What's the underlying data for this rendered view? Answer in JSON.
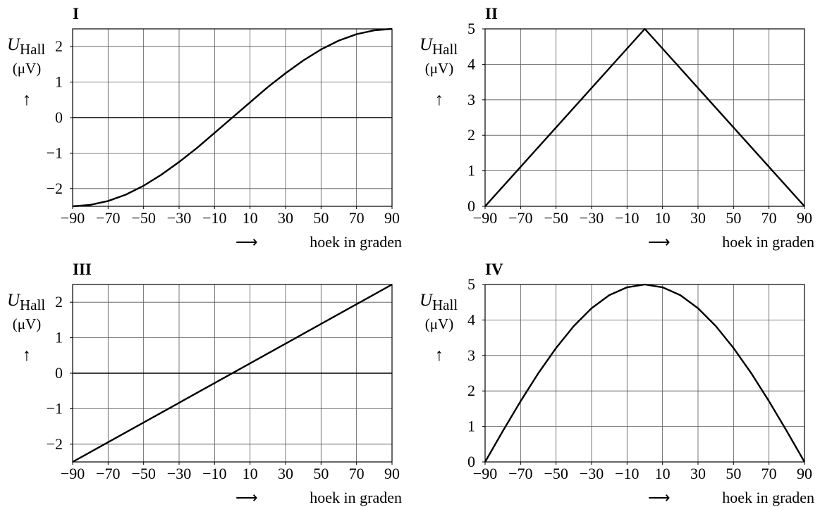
{
  "chart_data": [
    {
      "type": "line",
      "title": "I",
      "ylabel": "U",
      "ylabel_sub": "Hall",
      "yunit": "(μV)",
      "yarrow": "↑",
      "xlabel_arrow": "⟶",
      "xlabel": "hoek in graden",
      "xlim": [
        -90,
        90
      ],
      "ylim": [
        -2.5,
        2.5
      ],
      "xticks": [
        -90,
        -70,
        -50,
        -30,
        -10,
        10,
        30,
        50,
        70,
        90
      ],
      "xtick_labels": [
        "−90",
        "−70",
        "−50",
        "−30",
        "−10",
        "10",
        "30",
        "50",
        "70",
        "90"
      ],
      "yticks": [
        -2,
        -1,
        0,
        1,
        2
      ],
      "ytick_labels": [
        "−2",
        "−1",
        "0",
        "1",
        "2"
      ],
      "zero_line": true,
      "x": [
        -90,
        -80,
        -70,
        -60,
        -50,
        -40,
        -30,
        -20,
        -10,
        0,
        10,
        20,
        30,
        40,
        50,
        60,
        70,
        80,
        90
      ],
      "y": [
        -2.5,
        -2.46,
        -2.35,
        -2.17,
        -1.92,
        -1.61,
        -1.25,
        -0.86,
        -0.43,
        0,
        0.43,
        0.86,
        1.25,
        1.61,
        1.92,
        2.17,
        2.35,
        2.46,
        2.5
      ]
    },
    {
      "type": "line",
      "title": "II",
      "ylabel": "U",
      "ylabel_sub": "Hall",
      "yunit": "(μV)",
      "yarrow": "↑",
      "xlabel_arrow": "⟶",
      "xlabel": "hoek in graden",
      "xlim": [
        -90,
        90
      ],
      "ylim": [
        0,
        5
      ],
      "xticks": [
        -90,
        -70,
        -50,
        -30,
        -10,
        10,
        30,
        50,
        70,
        90
      ],
      "xtick_labels": [
        "−90",
        "−70",
        "−50",
        "−30",
        "−10",
        "10",
        "30",
        "50",
        "70",
        "90"
      ],
      "yticks": [
        0,
        1,
        2,
        3,
        4,
        5
      ],
      "ytick_labels": [
        "0",
        "1",
        "2",
        "3",
        "4",
        "5"
      ],
      "zero_line": false,
      "x": [
        -90,
        0,
        90
      ],
      "y": [
        0,
        5,
        0
      ]
    },
    {
      "type": "line",
      "title": "III",
      "ylabel": "U",
      "ylabel_sub": "Hall",
      "yunit": "(μV)",
      "yarrow": "↑",
      "xlabel_arrow": "⟶",
      "xlabel": "hoek in graden",
      "xlim": [
        -90,
        90
      ],
      "ylim": [
        -2.5,
        2.5
      ],
      "xticks": [
        -90,
        -70,
        -50,
        -30,
        -10,
        10,
        30,
        50,
        70,
        90
      ],
      "xtick_labels": [
        "−90",
        "−70",
        "−50",
        "−30",
        "−10",
        "10",
        "30",
        "50",
        "70",
        "90"
      ],
      "yticks": [
        -2,
        -1,
        0,
        1,
        2
      ],
      "ytick_labels": [
        "−2",
        "−1",
        "0",
        "1",
        "2"
      ],
      "zero_line": true,
      "x": [
        -90,
        90
      ],
      "y": [
        -2.5,
        2.5
      ]
    },
    {
      "type": "line",
      "title": "IV",
      "ylabel": "U",
      "ylabel_sub": "Hall",
      "yunit": "(μV)",
      "yarrow": "↑",
      "xlabel_arrow": "⟶",
      "xlabel": "hoek in graden",
      "xlim": [
        -90,
        90
      ],
      "ylim": [
        0,
        5
      ],
      "xticks": [
        -90,
        -70,
        -50,
        -30,
        -10,
        10,
        30,
        50,
        70,
        90
      ],
      "xtick_labels": [
        "−90",
        "−70",
        "−50",
        "−30",
        "−10",
        "10",
        "30",
        "50",
        "70",
        "90"
      ],
      "yticks": [
        0,
        1,
        2,
        3,
        4,
        5
      ],
      "ytick_labels": [
        "0",
        "1",
        "2",
        "3",
        "4",
        "5"
      ],
      "zero_line": false,
      "x": [
        -90,
        -80,
        -70,
        -60,
        -50,
        -40,
        -30,
        -20,
        -10,
        0,
        10,
        20,
        30,
        40,
        50,
        60,
        70,
        80,
        90
      ],
      "y": [
        0,
        0.87,
        1.71,
        2.5,
        3.21,
        3.83,
        4.33,
        4.7,
        4.92,
        5,
        4.92,
        4.7,
        4.33,
        3.83,
        3.21,
        2.5,
        1.71,
        0.87,
        0
      ]
    }
  ]
}
